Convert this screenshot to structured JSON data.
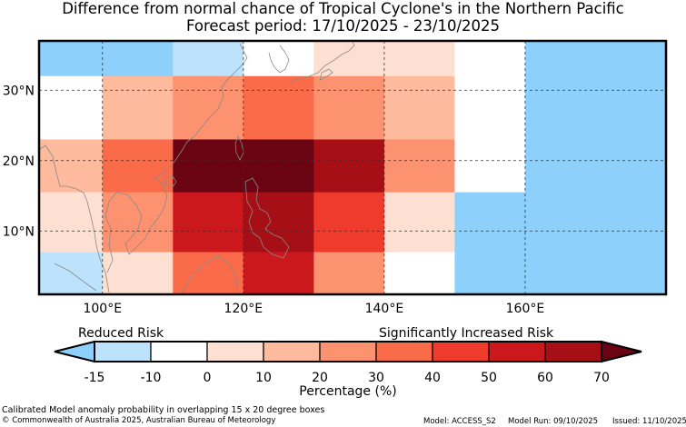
{
  "title": {
    "line1": "Difference from normal chance of Tropical Cyclone's in the Northern Pacific",
    "line2": "Forecast period: 17/10/2025 - 23/10/2025"
  },
  "map": {
    "lon_range": [
      91,
      180
    ],
    "lat_range": [
      1,
      37
    ],
    "x_ticks": [
      {
        "lon": 100,
        "label": "100°E"
      },
      {
        "lon": 120,
        "label": "120°E"
      },
      {
        "lon": 140,
        "label": "140°E"
      },
      {
        "lon": 160,
        "label": "160°E"
      }
    ],
    "y_ticks": [
      {
        "lat": 10,
        "label": "10°N"
      },
      {
        "lat": 20,
        "label": "20°N"
      },
      {
        "lat": 30,
        "label": "30°N"
      }
    ],
    "cells": [
      {
        "lon0": 91,
        "lon1": 110,
        "lat0": 32,
        "lat1": 37,
        "color": "#8dd0fb"
      },
      {
        "lon0": 110,
        "lon1": 120,
        "lat0": 32,
        "lat1": 37,
        "color": "#bde3fc"
      },
      {
        "lon0": 120,
        "lon1": 130,
        "lat0": 32,
        "lat1": 37,
        "color": "#ffffff"
      },
      {
        "lon0": 130,
        "lon1": 150,
        "lat0": 32,
        "lat1": 37,
        "color": "#fee0d3"
      },
      {
        "lon0": 150,
        "lon1": 160,
        "lat0": 32,
        "lat1": 37,
        "color": "#ffffff"
      },
      {
        "lon0": 160,
        "lon1": 180,
        "lat0": 32,
        "lat1": 37,
        "color": "#8dd0fb"
      },
      {
        "lon0": 91,
        "lon1": 100,
        "lat0": 23,
        "lat1": 32,
        "color": "#ffffff"
      },
      {
        "lon0": 100,
        "lon1": 110,
        "lat0": 23,
        "lat1": 32,
        "color": "#fdba9c"
      },
      {
        "lon0": 110,
        "lon1": 120,
        "lat0": 23,
        "lat1": 32,
        "color": "#fc9270"
      },
      {
        "lon0": 120,
        "lon1": 130,
        "lat0": 23,
        "lat1": 32,
        "color": "#fa6b4a"
      },
      {
        "lon0": 130,
        "lon1": 140,
        "lat0": 23,
        "lat1": 32,
        "color": "#fc9270"
      },
      {
        "lon0": 140,
        "lon1": 150,
        "lat0": 23,
        "lat1": 32,
        "color": "#fdba9c"
      },
      {
        "lon0": 150,
        "lon1": 160,
        "lat0": 23,
        "lat1": 32,
        "color": "#ffffff"
      },
      {
        "lon0": 160,
        "lon1": 180,
        "lat0": 23,
        "lat1": 32,
        "color": "#8dd0fb"
      },
      {
        "lon0": 91,
        "lon1": 100,
        "lat0": 15.5,
        "lat1": 23,
        "color": "#fdba9c"
      },
      {
        "lon0": 100,
        "lon1": 110,
        "lat0": 15.5,
        "lat1": 23,
        "color": "#fa6b4a"
      },
      {
        "lon0": 110,
        "lon1": 130,
        "lat0": 15.5,
        "lat1": 23,
        "color": "#6a0413"
      },
      {
        "lon0": 130,
        "lon1": 140,
        "lat0": 15.5,
        "lat1": 23,
        "color": "#a50f15"
      },
      {
        "lon0": 140,
        "lon1": 150,
        "lat0": 15.5,
        "lat1": 23,
        "color": "#fc9270"
      },
      {
        "lon0": 150,
        "lon1": 160,
        "lat0": 15.5,
        "lat1": 23,
        "color": "#ffffff"
      },
      {
        "lon0": 160,
        "lon1": 180,
        "lat0": 15.5,
        "lat1": 23,
        "color": "#8dd0fb"
      },
      {
        "lon0": 91,
        "lon1": 100,
        "lat0": 7,
        "lat1": 15.5,
        "color": "#fee0d3"
      },
      {
        "lon0": 100,
        "lon1": 110,
        "lat0": 7,
        "lat1": 15.5,
        "color": "#fc9270"
      },
      {
        "lon0": 110,
        "lon1": 120,
        "lat0": 7,
        "lat1": 15.5,
        "color": "#cb181d"
      },
      {
        "lon0": 120,
        "lon1": 130,
        "lat0": 7,
        "lat1": 15.5,
        "color": "#a50f15"
      },
      {
        "lon0": 130,
        "lon1": 140,
        "lat0": 7,
        "lat1": 15.5,
        "color": "#ee3b2c"
      },
      {
        "lon0": 140,
        "lon1": 150,
        "lat0": 7,
        "lat1": 15.5,
        "color": "#fee0d3"
      },
      {
        "lon0": 150,
        "lon1": 160,
        "lat0": 7,
        "lat1": 15.5,
        "color": "#8dd0fb"
      },
      {
        "lon0": 160,
        "lon1": 180,
        "lat0": 7,
        "lat1": 15.5,
        "color": "#8dd0fb"
      },
      {
        "lon0": 91,
        "lon1": 100,
        "lat0": 1,
        "lat1": 7,
        "color": "#bde3fc"
      },
      {
        "lon0": 100,
        "lon1": 110,
        "lat0": 1,
        "lat1": 7,
        "color": "#fee0d3"
      },
      {
        "lon0": 110,
        "lon1": 120,
        "lat0": 1,
        "lat1": 7,
        "color": "#fa6b4a"
      },
      {
        "lon0": 120,
        "lon1": 130,
        "lat0": 1,
        "lat1": 7,
        "color": "#cb181d"
      },
      {
        "lon0": 130,
        "lon1": 140,
        "lat0": 1,
        "lat1": 7,
        "color": "#fc9270"
      },
      {
        "lon0": 140,
        "lon1": 150,
        "lat0": 1,
        "lat1": 7,
        "color": "#ffffff"
      },
      {
        "lon0": 150,
        "lon1": 160,
        "lat0": 1,
        "lat1": 7,
        "color": "#8dd0fb"
      },
      {
        "lon0": 160,
        "lon1": 180,
        "lat0": 1,
        "lat1": 7,
        "color": "#8dd0fb"
      }
    ]
  },
  "colorbar": {
    "reduced_label": "Reduced Risk",
    "increased_label": "Significantly Increased Risk",
    "axis_label": "Percentage (%)",
    "under_color": "#8dd0fb",
    "over_color": "#6a0413",
    "bins": [
      {
        "from": -15,
        "to": -10,
        "color": "#bde3fc"
      },
      {
        "from": -10,
        "to": 0,
        "color": "#ffffff"
      },
      {
        "from": 0,
        "to": 10,
        "color": "#fee0d3"
      },
      {
        "from": 10,
        "to": 20,
        "color": "#fdba9c"
      },
      {
        "from": 20,
        "to": 30,
        "color": "#fc9270"
      },
      {
        "from": 30,
        "to": 40,
        "color": "#fa6b4a"
      },
      {
        "from": 40,
        "to": 50,
        "color": "#ee3b2c"
      },
      {
        "from": 50,
        "to": 60,
        "color": "#cb181d"
      },
      {
        "from": 60,
        "to": 70,
        "color": "#a50f15"
      }
    ],
    "ticks": [
      "-15",
      "-10",
      "0",
      "10",
      "20",
      "30",
      "40",
      "50",
      "60",
      "70"
    ]
  },
  "footer": {
    "description": "Calibrated Model anomaly probability in overlapping 15 x 20 degree boxes",
    "copyright": "© Commonwealth of Australia 2025, Australian Bureau of Meteorology",
    "model": "Model: ACCESS_S2",
    "model_run": "Model Run: 09/10/2025",
    "issued": "Issued: 11/10/2025"
  }
}
